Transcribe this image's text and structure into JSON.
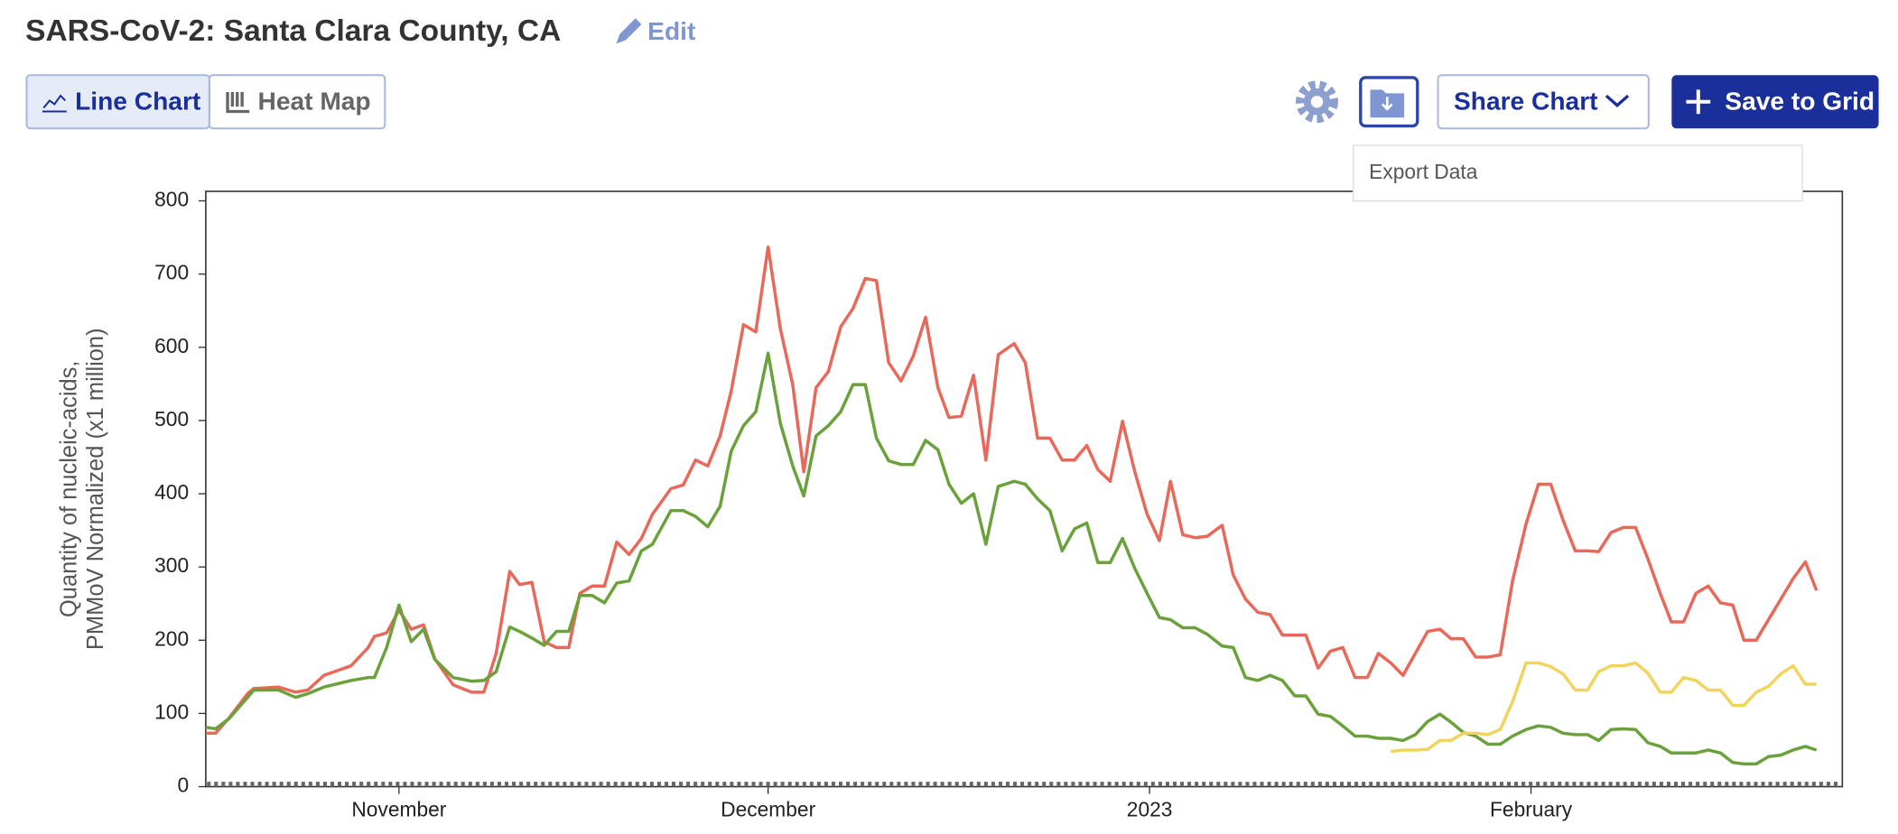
{
  "header": {
    "title": "SARS-CoV-2: Santa Clara County, CA",
    "edit": "Edit"
  },
  "toolbar": {
    "line_chart": "Line Chart",
    "heat_map": "Heat Map",
    "share_chart": "Share Chart",
    "save_to_grid": "Save to Grid",
    "export_tooltip": "Export Data"
  },
  "chart_data": {
    "type": "line",
    "ylabel": [
      "Quantity of nucleic-acids,",
      "PMMoV Normalized (x1 million)"
    ],
    "xlim": [
      -15.7,
      117.3
    ],
    "xticks": [
      {
        "value": 0,
        "label": "November"
      },
      {
        "value": 30,
        "label": "December"
      },
      {
        "value": 61,
        "label": "2023"
      },
      {
        "value": 92,
        "label": "February"
      }
    ],
    "ylim": [
      0,
      813
    ],
    "yticks": [
      0,
      100,
      200,
      300,
      400,
      500,
      600,
      700,
      800
    ],
    "grid": false,
    "x": [
      -15.7,
      -14.9,
      -13.8,
      -12.3,
      -11.8,
      -9.8,
      -8.4,
      -7.4,
      -6.1,
      -3.9,
      -2.5,
      -2.0,
      -1.0,
      0,
      1.0,
      2.0,
      2.9,
      4.4,
      5.9,
      6.9,
      7.9,
      9.0,
      9.8,
      10.8,
      11.8,
      12.8,
      13.8,
      14.7,
      15.7,
      16.7,
      17.7,
      18.7,
      19.7,
      20.6,
      22.1,
      23.1,
      24.1,
      25.1,
      26.1,
      27.0,
      28.0,
      29.0,
      30.0,
      31.0,
      32.0,
      32.9,
      33.9,
      34.9,
      35.9,
      36.9,
      37.9,
      38.8,
      39.8,
      40.8,
      41.8,
      42.8,
      43.8,
      44.7,
      45.7,
      46.7,
      47.7,
      48.7,
      50.0,
      50.9,
      51.9,
      52.9,
      53.9,
      54.9,
      55.9,
      56.8,
      57.8,
      58.8,
      59.8,
      60.8,
      61.8,
      62.7,
      63.7,
      64.7,
      65.7,
      66.9,
      67.8,
      68.8,
      69.8,
      70.8,
      71.8,
      72.8,
      73.7,
      74.7,
      75.7,
      76.7,
      77.7,
      78.7,
      79.6,
      80.6,
      81.6,
      82.6,
      83.6,
      84.6,
      85.5,
      86.5,
      87.5,
      88.5,
      89.5,
      90.5,
      91.6,
      92.6,
      93.6,
      94.6,
      95.6,
      96.6,
      97.5,
      98.5,
      99.5,
      100.5,
      101.5,
      102.5,
      103.4,
      104.4,
      105.4,
      106.4,
      107.4,
      108.4,
      109.3,
      110.3,
      111.3,
      112.3,
      113.3,
      114.3,
      115.2
    ],
    "series": [
      {
        "color": "#e8685a",
        "values": [
          73,
          73,
          94,
          127,
          134,
          136,
          129,
          132,
          152,
          165,
          190,
          205,
          210,
          241,
          215,
          221,
          175,
          139,
          129,
          129,
          182,
          294,
          276,
          279,
          198,
          190,
          190,
          264,
          274,
          274,
          334,
          317,
          339,
          372,
          407,
          412,
          446,
          438,
          479,
          540,
          631,
          621,
          737,
          625,
          549,
          430,
          545,
          567,
          628,
          653,
          694,
          691,
          579,
          554,
          588,
          641,
          545,
          504,
          506,
          562,
          446,
          590,
          605,
          579,
          476,
          476,
          446,
          446,
          466,
          433,
          417,
          499,
          430,
          372,
          336,
          417,
          344,
          340,
          342,
          357,
          289,
          256,
          238,
          235,
          207,
          207,
          207,
          162,
          185,
          190,
          149,
          149,
          182,
          169,
          152,
          182,
          212,
          215,
          202,
          202,
          177,
          177,
          180,
          281,
          359,
          413,
          413,
          364,
          322,
          322,
          321,
          347,
          354,
          354,
          311,
          264,
          225,
          225,
          264,
          274,
          251,
          248,
          200,
          200,
          228,
          256,
          284,
          307,
          268
        ]
      },
      {
        "color": "#6aa13a",
        "values": [
          81,
          79,
          93,
          122,
          132,
          132,
          122,
          127,
          136,
          145,
          149,
          149,
          190,
          248,
          198,
          215,
          174,
          149,
          144,
          145,
          157,
          218,
          212,
          203,
          193,
          212,
          212,
          261,
          261,
          251,
          278,
          281,
          322,
          331,
          377,
          377,
          369,
          355,
          383,
          458,
          493,
          512,
          592,
          496,
          438,
          397,
          479,
          493,
          512,
          549,
          549,
          476,
          445,
          440,
          440,
          473,
          460,
          413,
          387,
          400,
          331,
          410,
          417,
          413,
          393,
          377,
          322,
          352,
          360,
          306,
          306,
          339,
          298,
          264,
          231,
          228,
          217,
          217,
          208,
          192,
          190,
          149,
          145,
          152,
          145,
          124,
          124,
          99,
          96,
          83,
          69,
          69,
          66,
          66,
          63,
          71,
          89,
          99,
          88,
          74,
          69,
          58,
          58,
          69,
          78,
          83,
          81,
          73,
          71,
          71,
          63,
          78,
          79,
          78,
          60,
          55,
          46,
          46,
          46,
          50,
          46,
          33,
          31,
          31,
          41,
          43,
          50,
          55,
          50
        ]
      },
      {
        "color": "#f2d45c",
        "values": [
          null,
          null,
          null,
          null,
          null,
          null,
          null,
          null,
          null,
          null,
          null,
          null,
          null,
          null,
          null,
          null,
          null,
          null,
          null,
          null,
          null,
          null,
          null,
          null,
          null,
          null,
          null,
          null,
          null,
          null,
          null,
          null,
          null,
          null,
          null,
          null,
          null,
          null,
          null,
          null,
          null,
          null,
          null,
          null,
          null,
          null,
          null,
          null,
          null,
          null,
          null,
          null,
          null,
          null,
          null,
          null,
          null,
          null,
          null,
          null,
          null,
          null,
          null,
          null,
          null,
          null,
          null,
          null,
          null,
          null,
          null,
          null,
          null,
          null,
          null,
          null,
          null,
          null,
          null,
          null,
          null,
          null,
          null,
          null,
          null,
          null,
          null,
          null,
          null,
          null,
          null,
          null,
          null,
          48,
          50,
          50,
          51,
          63,
          63,
          73,
          73,
          71,
          78,
          116,
          169,
          169,
          164,
          154,
          132,
          132,
          157,
          165,
          165,
          169,
          155,
          129,
          129,
          149,
          145,
          132,
          132,
          111,
          111,
          129,
          137,
          154,
          165,
          140,
          140
        ]
      }
    ]
  }
}
